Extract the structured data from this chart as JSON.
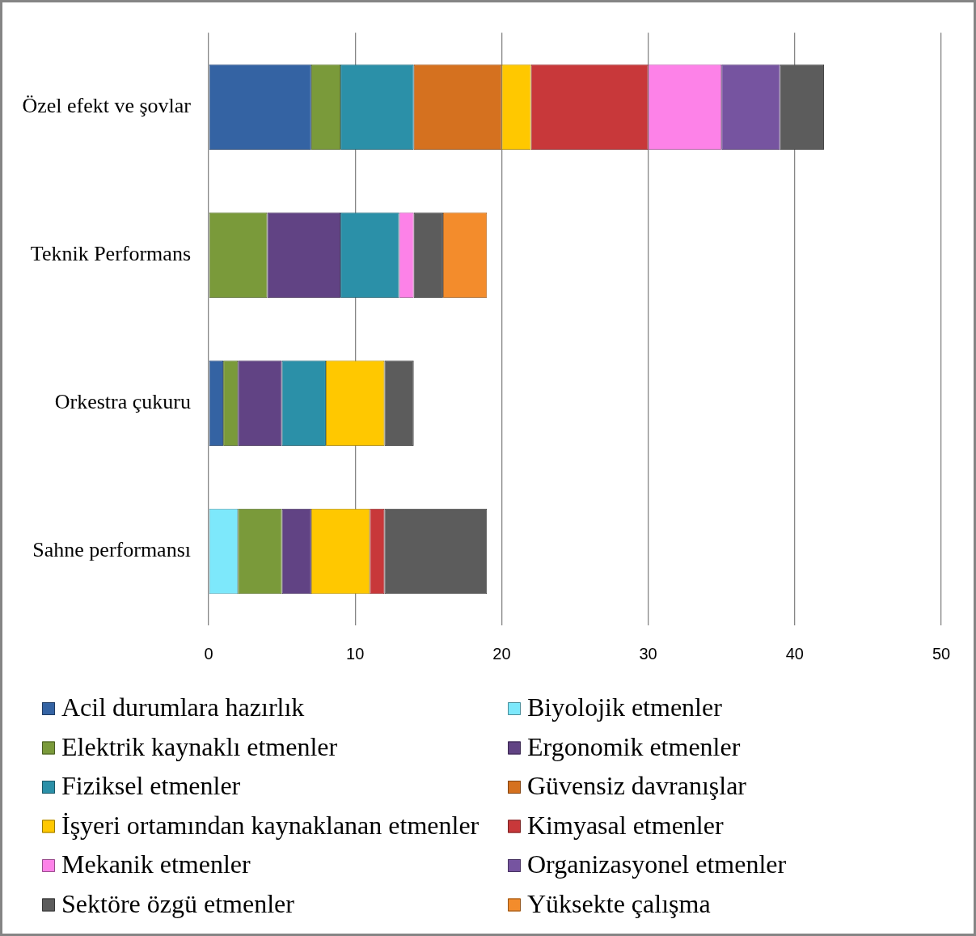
{
  "chart_data": {
    "type": "bar",
    "orientation": "horizontal",
    "stacked": true,
    "categories": [
      "Özel efekt ve şovlar",
      "Teknik Performans",
      "Orkestra çukuru",
      "Sahne performansı"
    ],
    "series": [
      {
        "name": "Acil durumlara hazırlık",
        "color": "#3463a3",
        "values": [
          7,
          null,
          1,
          null
        ]
      },
      {
        "name": "Biyolojik etmenler",
        "color": "#7de8fb",
        "values": [
          null,
          null,
          null,
          2
        ]
      },
      {
        "name": "Elektrik kaynaklı etmenler",
        "color": "#7a9a3a",
        "values": [
          2,
          4,
          1,
          3
        ]
      },
      {
        "name": "Ergonomik etmenler",
        "color": "#614384",
        "values": [
          null,
          5,
          3,
          2
        ]
      },
      {
        "name": "Fiziksel etmenler",
        "color": "#2b90a8",
        "values": [
          5,
          4,
          3,
          null
        ]
      },
      {
        "name": "Güvensiz davranışlar",
        "color": "#d5711f",
        "values": [
          6,
          null,
          null,
          null
        ]
      },
      {
        "name": "İşyeri ortamından kaynaklanan etmenler",
        "color": "#ffc800",
        "values": [
          2,
          null,
          4,
          4
        ]
      },
      {
        "name": "Kimyasal etmenler",
        "color": "#c8383a",
        "values": [
          8,
          null,
          null,
          1
        ]
      },
      {
        "name": "Mekanik etmenler",
        "color": "#fd82e8",
        "values": [
          5,
          1,
          null,
          null
        ]
      },
      {
        "name": "Organizasyonel etmenler",
        "color": "#7654a0",
        "values": [
          4,
          null,
          null,
          null
        ]
      },
      {
        "name": "Sektöre özgü etmenler",
        "color": "#5c5c5c",
        "values": [
          3,
          2,
          2,
          7
        ]
      },
      {
        "name": "Yüksekte çalışma",
        "color": "#f38c2c",
        "values": [
          null,
          3,
          null,
          null
        ]
      }
    ],
    "xlim": [
      0,
      50
    ],
    "xticks": [
      0,
      10,
      20,
      30,
      40,
      50
    ],
    "grid": "x",
    "legend": "bottom"
  }
}
